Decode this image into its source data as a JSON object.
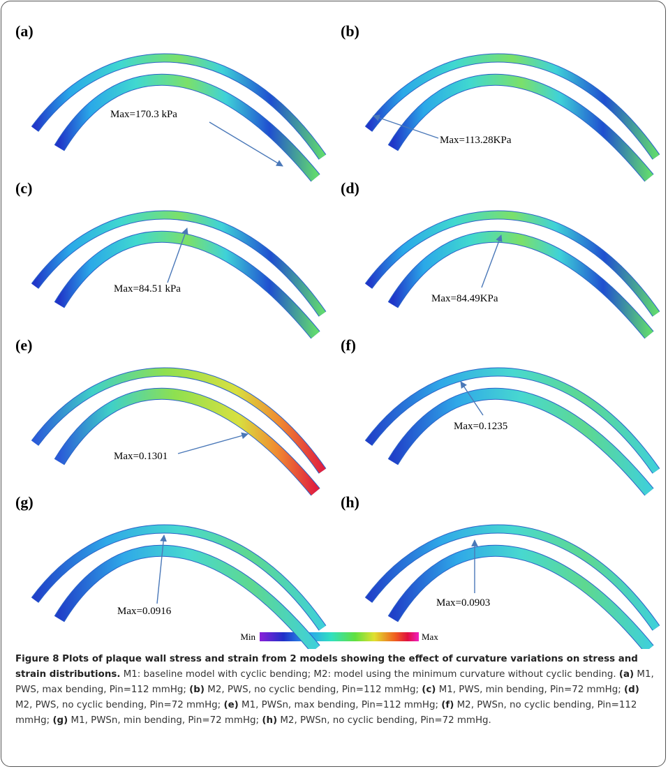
{
  "panels": [
    {
      "label": "(a)",
      "annotation": "Max=170.3 kPa"
    },
    {
      "label": "(b)",
      "annotation": "Max=113.28KPa"
    },
    {
      "label": "(c)",
      "annotation": "Max=84.51 kPa"
    },
    {
      "label": "(d)",
      "annotation": "Max=84.49KPa"
    },
    {
      "label": "(e)",
      "annotation": "Max=0.1301"
    },
    {
      "label": "(f)",
      "annotation": "Max=0.1235"
    },
    {
      "label": "(g)",
      "annotation": "Max=0.0916"
    },
    {
      "label": "(h)",
      "annotation": "Max=0.0903"
    }
  ],
  "colorbar": {
    "min_label": "Min",
    "max_label": "Max"
  },
  "caption": {
    "title": "Figure 8 Plots of plaque wall stress and strain from 2 models showing the effect of curvature variations on stress and strain distributions.",
    "intro": "M1: baseline model with cyclic bending; M2: model using the minimum curvature without cyclic bending.",
    "items": [
      {
        "label": "(a)",
        "text": "M1, PWS, max bending, Pin=112 mmHg;"
      },
      {
        "label": "(b)",
        "text": "M2, PWS, no cyclic bending, Pin=112 mmHg;"
      },
      {
        "label": "(c)",
        "text": "M1, PWS, min bending, Pin=72 mmHg;"
      },
      {
        "label": "(d)",
        "text": "M2, PWS, no cyclic bending, Pin=72 mmHg;"
      },
      {
        "label": "(e)",
        "text": "M1, PWSn, max bending, Pin=112 mmHg;"
      },
      {
        "label": "(f)",
        "text": "M2, PWSn, no cyclic bending, Pin=112 mmHg;"
      },
      {
        "label": "(g)",
        "text": "M1, PWSn, min bending, Pin=72 mmHg;"
      },
      {
        "label": "(h)",
        "text": "M2, PWSn, no cyclic bending, Pin=72 mmHg."
      }
    ]
  }
}
